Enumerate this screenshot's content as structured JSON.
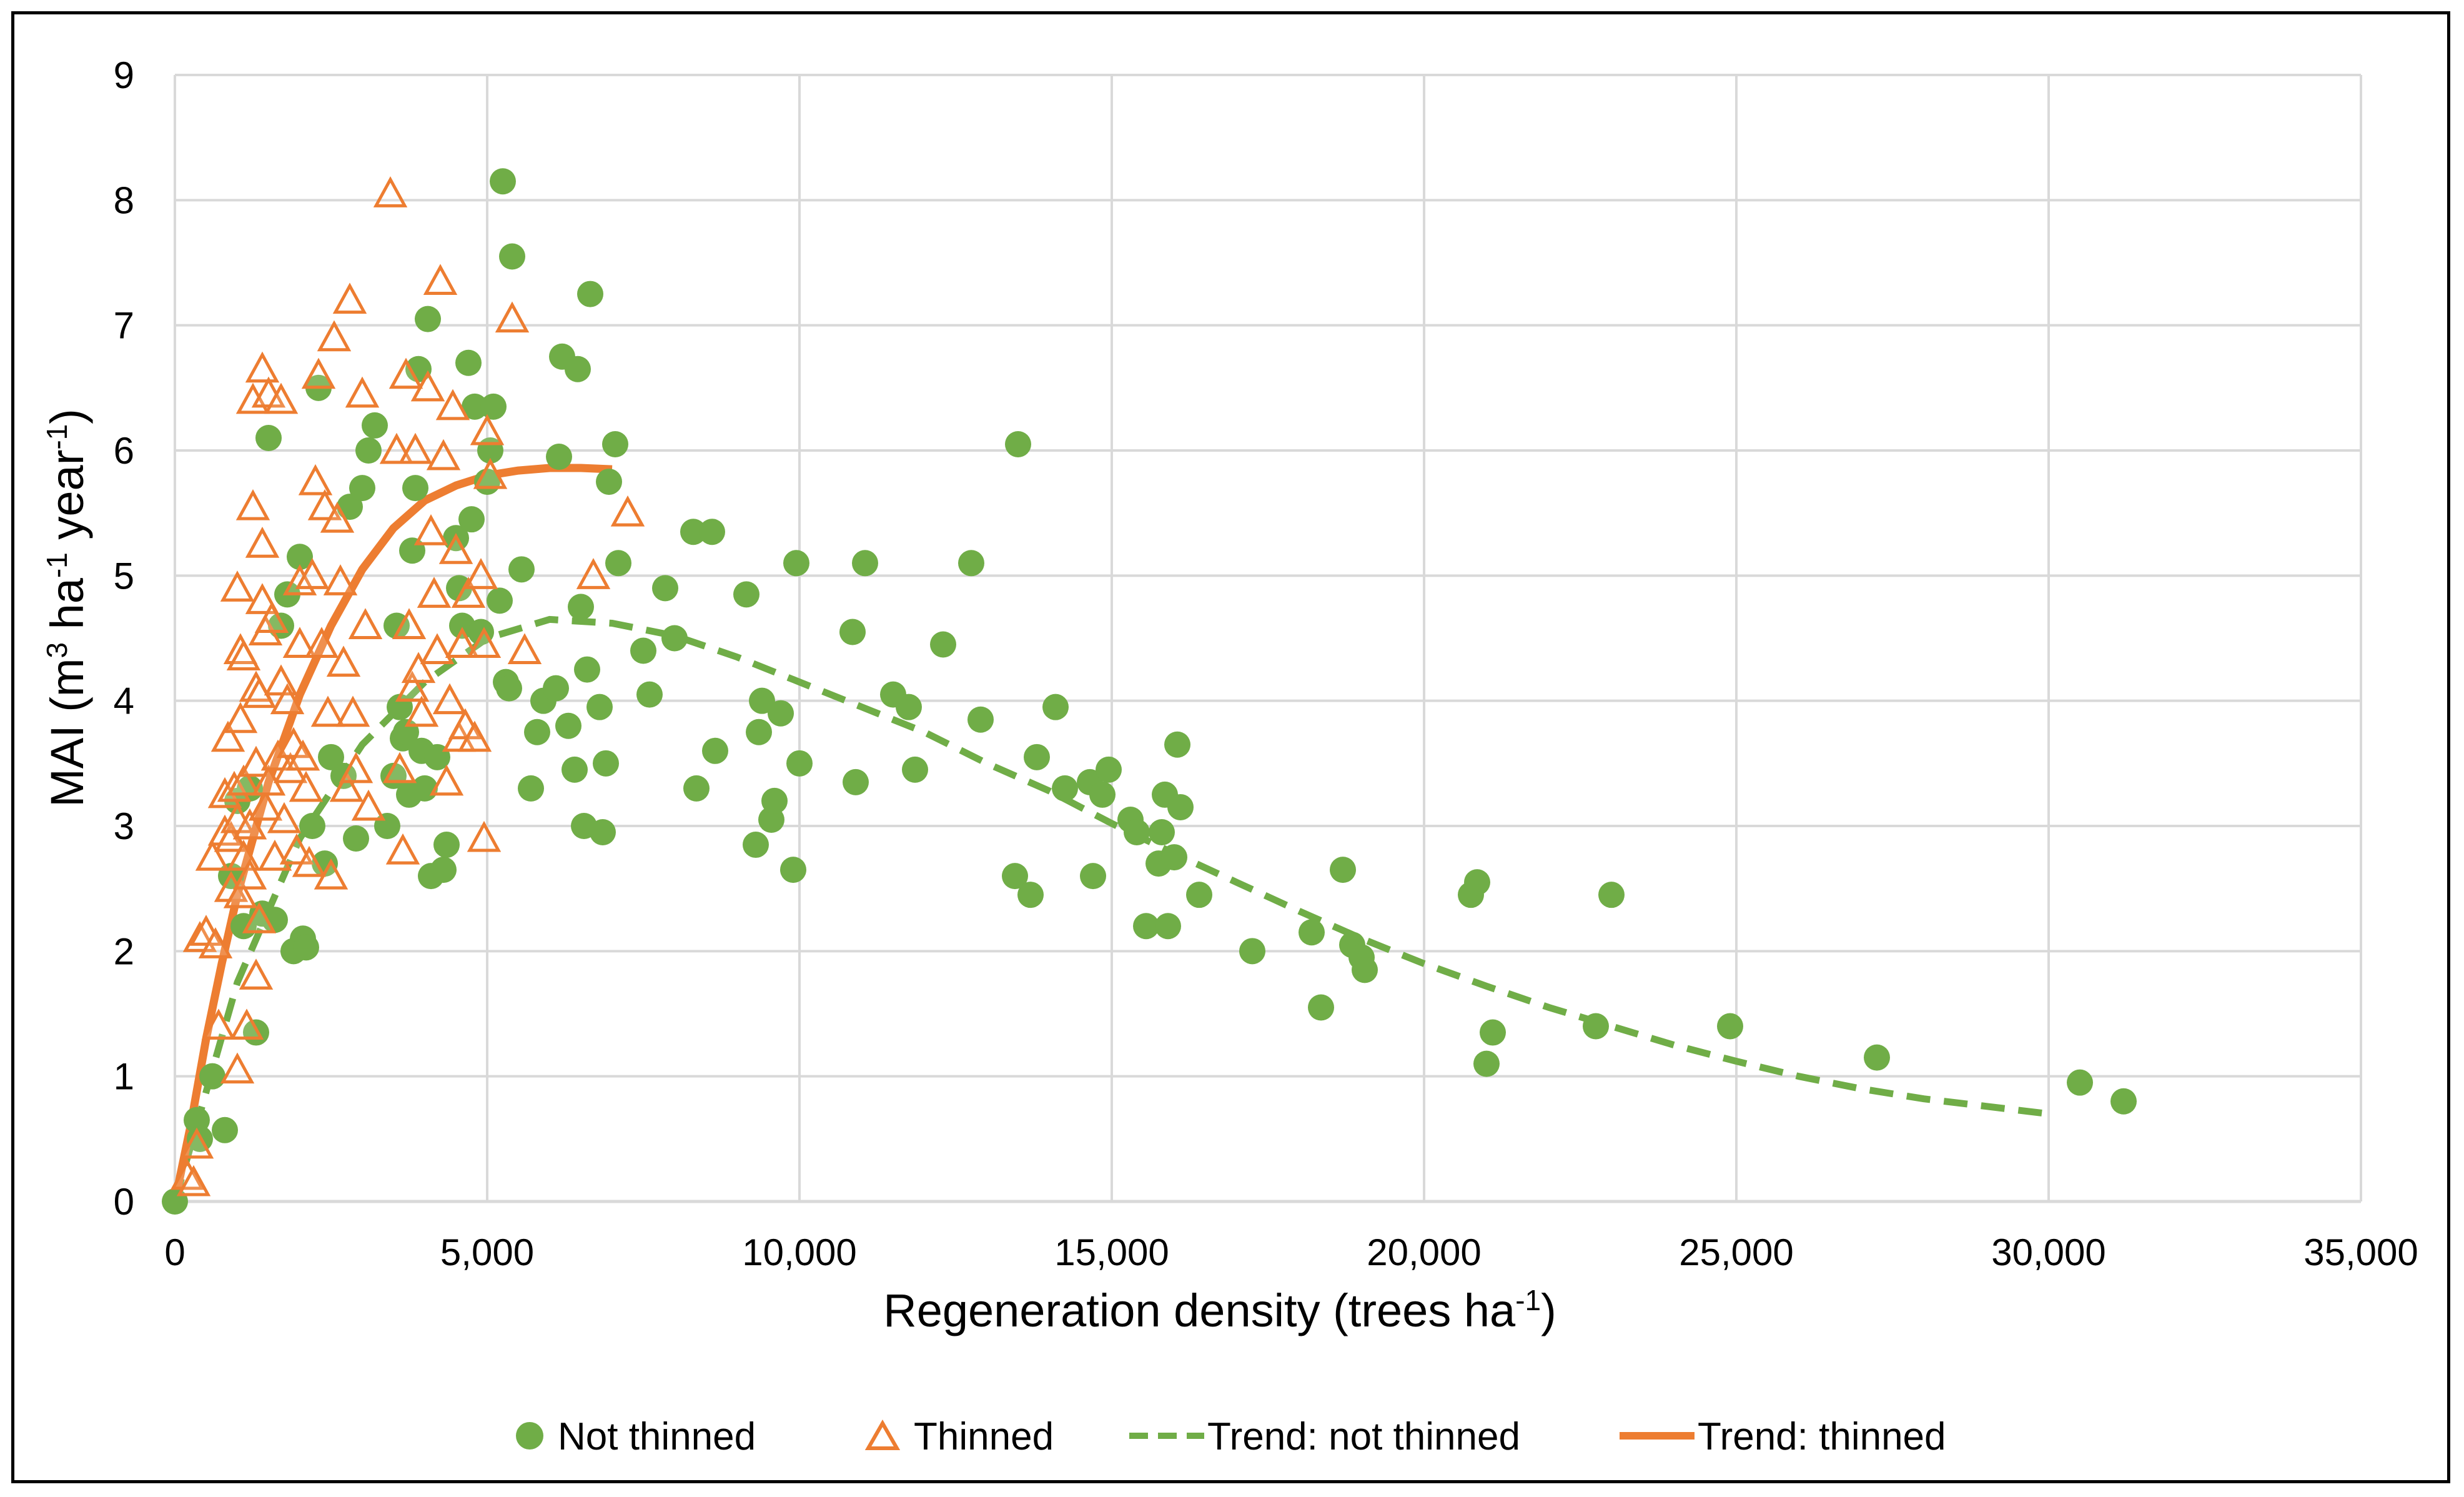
{
  "chart_data": {
    "type": "scatter",
    "title": "",
    "xlabel": "Regeneration density (trees ha-1)",
    "xlabel_parts": {
      "base": "Regeneration density (trees ha",
      "sup": "-1",
      "end": ")"
    },
    "ylabel": "MAI (m3 ha-1 year-1)",
    "ylabel_parts": {
      "p1": "MAI (m",
      "s1": "3",
      "p2": " ha",
      "s2": "-1",
      "p3": " year",
      "s3": "-1",
      "p4": ")"
    },
    "xlim": [
      0,
      35000
    ],
    "ylim": [
      0,
      9
    ],
    "x_ticks": [
      0,
      5000,
      10000,
      15000,
      20000,
      25000,
      30000,
      35000
    ],
    "x_tick_labels": [
      "0",
      "5,000",
      "10,000",
      "15,000",
      "20,000",
      "25,000",
      "30,000",
      "35,000"
    ],
    "y_ticks": [
      0,
      1,
      2,
      3,
      4,
      5,
      6,
      7,
      8,
      9
    ],
    "y_tick_labels": [
      "0",
      "1",
      "2",
      "3",
      "4",
      "5",
      "6",
      "7",
      "8",
      "9"
    ],
    "grid": true,
    "legend_position": "bottom",
    "colors": {
      "not_thinned": "#70AD47",
      "thinned": "#ED7D31",
      "grid": "#D9D9D9"
    },
    "series": [
      {
        "name": "Not thinned",
        "marker": "circle",
        "points": [
          [
            0,
            0
          ],
          [
            350,
            0.65
          ],
          [
            400,
            0.5
          ],
          [
            600,
            1.0
          ],
          [
            800,
            0.57
          ],
          [
            900,
            2.6
          ],
          [
            1000,
            3.2
          ],
          [
            1100,
            2.2
          ],
          [
            1200,
            3.3
          ],
          [
            1300,
            1.35
          ],
          [
            1400,
            2.3
          ],
          [
            1500,
            6.1
          ],
          [
            1600,
            2.25
          ],
          [
            1700,
            4.6
          ],
          [
            1800,
            4.85
          ],
          [
            1900,
            2.0
          ],
          [
            2000,
            5.15
          ],
          [
            2050,
            2.1
          ],
          [
            2100,
            2.03
          ],
          [
            2200,
            3.0
          ],
          [
            2300,
            6.5
          ],
          [
            2400,
            2.7
          ],
          [
            2500,
            3.55
          ],
          [
            2700,
            3.4
          ],
          [
            2800,
            5.55
          ],
          [
            2900,
            2.9
          ],
          [
            3000,
            5.7
          ],
          [
            3100,
            6.0
          ],
          [
            3200,
            6.2
          ],
          [
            3400,
            3.0
          ],
          [
            3500,
            3.4
          ],
          [
            3550,
            4.6
          ],
          [
            3600,
            3.95
          ],
          [
            3650,
            3.7
          ],
          [
            3700,
            3.75
          ],
          [
            3750,
            3.25
          ],
          [
            3800,
            5.2
          ],
          [
            3850,
            5.7
          ],
          [
            3900,
            6.65
          ],
          [
            3950,
            3.6
          ],
          [
            4000,
            3.3
          ],
          [
            4050,
            7.05
          ],
          [
            4100,
            2.6
          ],
          [
            4200,
            3.55
          ],
          [
            4300,
            2.65
          ],
          [
            4350,
            2.85
          ],
          [
            4500,
            5.3
          ],
          [
            4550,
            4.9
          ],
          [
            4600,
            4.6
          ],
          [
            4700,
            6.7
          ],
          [
            4750,
            5.45
          ],
          [
            4800,
            6.35
          ],
          [
            4900,
            4.55
          ],
          [
            5000,
            5.75
          ],
          [
            5050,
            6.0
          ],
          [
            5100,
            6.35
          ],
          [
            5200,
            4.8
          ],
          [
            5250,
            8.15
          ],
          [
            5300,
            4.15
          ],
          [
            5350,
            4.1
          ],
          [
            5400,
            7.55
          ],
          [
            5550,
            5.05
          ],
          [
            5700,
            3.3
          ],
          [
            5800,
            3.75
          ],
          [
            5900,
            4.0
          ],
          [
            6100,
            4.1
          ],
          [
            6150,
            5.95
          ],
          [
            6200,
            6.75
          ],
          [
            6300,
            3.8
          ],
          [
            6400,
            3.45
          ],
          [
            6450,
            6.65
          ],
          [
            6500,
            4.75
          ],
          [
            6550,
            3.0
          ],
          [
            6600,
            4.25
          ],
          [
            6650,
            7.25
          ],
          [
            6800,
            3.95
          ],
          [
            6850,
            2.95
          ],
          [
            6900,
            3.5
          ],
          [
            6950,
            5.75
          ],
          [
            7050,
            6.05
          ],
          [
            7100,
            5.1
          ],
          [
            7500,
            4.4
          ],
          [
            7600,
            4.05
          ],
          [
            7850,
            4.9
          ],
          [
            8000,
            4.5
          ],
          [
            8300,
            5.35
          ],
          [
            8350,
            3.3
          ],
          [
            8600,
            5.35
          ],
          [
            8650,
            3.6
          ],
          [
            9150,
            4.85
          ],
          [
            9300,
            2.85
          ],
          [
            9350,
            3.75
          ],
          [
            9400,
            4.0
          ],
          [
            9550,
            3.05
          ],
          [
            9600,
            3.2
          ],
          [
            9700,
            3.9
          ],
          [
            9900,
            2.65
          ],
          [
            9950,
            5.1
          ],
          [
            10000,
            3.5
          ],
          [
            10850,
            4.55
          ],
          [
            10900,
            3.35
          ],
          [
            11050,
            5.1
          ],
          [
            11500,
            4.05
          ],
          [
            11750,
            3.95
          ],
          [
            11850,
            3.45
          ],
          [
            12300,
            4.45
          ],
          [
            12750,
            5.1
          ],
          [
            12900,
            3.85
          ],
          [
            13450,
            2.6
          ],
          [
            13500,
            6.05
          ],
          [
            13700,
            2.45
          ],
          [
            13800,
            3.55
          ],
          [
            14100,
            3.95
          ],
          [
            14250,
            3.3
          ],
          [
            14650,
            3.35
          ],
          [
            14700,
            2.6
          ],
          [
            14850,
            3.25
          ],
          [
            14950,
            3.45
          ],
          [
            15300,
            3.05
          ],
          [
            15400,
            2.95
          ],
          [
            15550,
            2.2
          ],
          [
            15750,
            2.7
          ],
          [
            15800,
            2.95
          ],
          [
            15850,
            3.25
          ],
          [
            15900,
            2.2
          ],
          [
            16000,
            2.75
          ],
          [
            16050,
            3.65
          ],
          [
            16100,
            3.15
          ],
          [
            16400,
            2.45
          ],
          [
            17250,
            2.0
          ],
          [
            18200,
            2.15
          ],
          [
            18350,
            1.55
          ],
          [
            18700,
            2.65
          ],
          [
            18850,
            2.05
          ],
          [
            19000,
            1.95
          ],
          [
            19050,
            1.85
          ],
          [
            20750,
            2.45
          ],
          [
            20850,
            2.55
          ],
          [
            21000,
            1.1
          ],
          [
            21100,
            1.35
          ],
          [
            22750,
            1.4
          ],
          [
            23000,
            2.45
          ],
          [
            24900,
            1.4
          ],
          [
            27250,
            1.15
          ],
          [
            30500,
            0.95
          ],
          [
            31200,
            0.8
          ]
        ]
      },
      {
        "name": "Thinned",
        "marker": "triangle",
        "points": [
          [
            200,
            0.2
          ],
          [
            300,
            0.15
          ],
          [
            350,
            0.45
          ],
          [
            400,
            2.1
          ],
          [
            500,
            2.15
          ],
          [
            600,
            2.75
          ],
          [
            650,
            2.05
          ],
          [
            700,
            1.4
          ],
          [
            800,
            2.95
          ],
          [
            800,
            3.25
          ],
          [
            850,
            3.7
          ],
          [
            900,
            2.9
          ],
          [
            900,
            2.5
          ],
          [
            950,
            3.3
          ],
          [
            1000,
            4.9
          ],
          [
            1000,
            3.05
          ],
          [
            1000,
            1.05
          ],
          [
            1050,
            4.4
          ],
          [
            1050,
            3.85
          ],
          [
            1050,
            2.45
          ],
          [
            1100,
            4.35
          ],
          [
            1100,
            3.35
          ],
          [
            1100,
            2.75
          ],
          [
            1150,
            1.4
          ],
          [
            1200,
            3.0
          ],
          [
            1200,
            2.6
          ],
          [
            1250,
            6.4
          ],
          [
            1250,
            5.55
          ],
          [
            1300,
            4.1
          ],
          [
            1300,
            3.5
          ],
          [
            1300,
            1.8
          ],
          [
            1350,
            4.05
          ],
          [
            1350,
            2.25
          ],
          [
            1400,
            6.65
          ],
          [
            1400,
            5.25
          ],
          [
            1400,
            4.8
          ],
          [
            1450,
            4.55
          ],
          [
            1450,
            3.15
          ],
          [
            1500,
            6.45
          ],
          [
            1500,
            3.35
          ],
          [
            1550,
            4.65
          ],
          [
            1600,
            2.75
          ],
          [
            1650,
            3.55
          ],
          [
            1700,
            6.4
          ],
          [
            1700,
            4.15
          ],
          [
            1750,
            3.05
          ],
          [
            1800,
            4.0
          ],
          [
            1850,
            3.45
          ],
          [
            1900,
            3.65
          ],
          [
            1950,
            2.8
          ],
          [
            2000,
            4.95
          ],
          [
            2000,
            4.45
          ],
          [
            2050,
            3.55
          ],
          [
            2100,
            3.3
          ],
          [
            2150,
            2.7
          ],
          [
            2200,
            5.0
          ],
          [
            2250,
            5.75
          ],
          [
            2300,
            6.6
          ],
          [
            2350,
            4.45
          ],
          [
            2400,
            5.55
          ],
          [
            2450,
            3.9
          ],
          [
            2500,
            2.6
          ],
          [
            2550,
            6.9
          ],
          [
            2600,
            5.45
          ],
          [
            2650,
            4.95
          ],
          [
            2700,
            4.3
          ],
          [
            2750,
            3.3
          ],
          [
            2800,
            7.2
          ],
          [
            2850,
            3.9
          ],
          [
            2900,
            3.45
          ],
          [
            3000,
            6.45
          ],
          [
            3050,
            4.6
          ],
          [
            3100,
            3.15
          ],
          [
            3450,
            8.05
          ],
          [
            3550,
            6.0
          ],
          [
            3600,
            3.45
          ],
          [
            3650,
            2.8
          ],
          [
            3700,
            6.6
          ],
          [
            3750,
            4.6
          ],
          [
            3800,
            4.1
          ],
          [
            3850,
            6.0
          ],
          [
            3900,
            4.25
          ],
          [
            3950,
            3.9
          ],
          [
            4050,
            6.5
          ],
          [
            4100,
            5.35
          ],
          [
            4150,
            4.85
          ],
          [
            4200,
            4.4
          ],
          [
            4250,
            7.35
          ],
          [
            4300,
            5.95
          ],
          [
            4350,
            3.35
          ],
          [
            4400,
            4.0
          ],
          [
            4450,
            6.35
          ],
          [
            4500,
            5.2
          ],
          [
            4550,
            3.7
          ],
          [
            4600,
            4.45
          ],
          [
            4650,
            3.8
          ],
          [
            4700,
            4.85
          ],
          [
            4800,
            3.7
          ],
          [
            4900,
            5.0
          ],
          [
            4950,
            4.45
          ],
          [
            4950,
            2.9
          ],
          [
            5000,
            6.15
          ],
          [
            5050,
            5.8
          ],
          [
            5400,
            7.05
          ],
          [
            5600,
            4.4
          ],
          [
            6700,
            5.0
          ],
          [
            7250,
            5.5
          ]
        ]
      },
      {
        "name": "Trend: not thinned",
        "style": "dashed",
        "points": [
          [
            0,
            0
          ],
          [
            1000,
            1.75
          ],
          [
            2000,
            2.9
          ],
          [
            3000,
            3.65
          ],
          [
            4000,
            4.15
          ],
          [
            5000,
            4.5
          ],
          [
            6000,
            4.65
          ],
          [
            7000,
            4.62
          ],
          [
            8000,
            4.52
          ],
          [
            9000,
            4.35
          ],
          [
            10000,
            4.15
          ],
          [
            11000,
            3.95
          ],
          [
            12000,
            3.75
          ],
          [
            13000,
            3.5
          ],
          [
            14000,
            3.28
          ],
          [
            15000,
            3.02
          ],
          [
            16000,
            2.78
          ],
          [
            17000,
            2.55
          ],
          [
            18000,
            2.32
          ],
          [
            19000,
            2.1
          ],
          [
            20000,
            1.9
          ],
          [
            21000,
            1.72
          ],
          [
            22000,
            1.55
          ],
          [
            23000,
            1.4
          ],
          [
            24000,
            1.25
          ],
          [
            25000,
            1.12
          ],
          [
            26000,
            1.0
          ],
          [
            27000,
            0.9
          ],
          [
            28000,
            0.82
          ],
          [
            29000,
            0.76
          ],
          [
            30000,
            0.7
          ]
        ]
      },
      {
        "name": "Trend: thinned",
        "style": "solid",
        "points": [
          [
            0,
            0
          ],
          [
            250,
            0.6
          ],
          [
            500,
            1.3
          ],
          [
            750,
            1.9
          ],
          [
            1000,
            2.45
          ],
          [
            1500,
            3.35
          ],
          [
            2000,
            4.05
          ],
          [
            2500,
            4.6
          ],
          [
            3000,
            5.05
          ],
          [
            3500,
            5.38
          ],
          [
            4000,
            5.6
          ],
          [
            4500,
            5.72
          ],
          [
            5000,
            5.8
          ],
          [
            5500,
            5.84
          ],
          [
            6000,
            5.86
          ],
          [
            6500,
            5.86
          ],
          [
            7000,
            5.85
          ]
        ]
      }
    ]
  }
}
